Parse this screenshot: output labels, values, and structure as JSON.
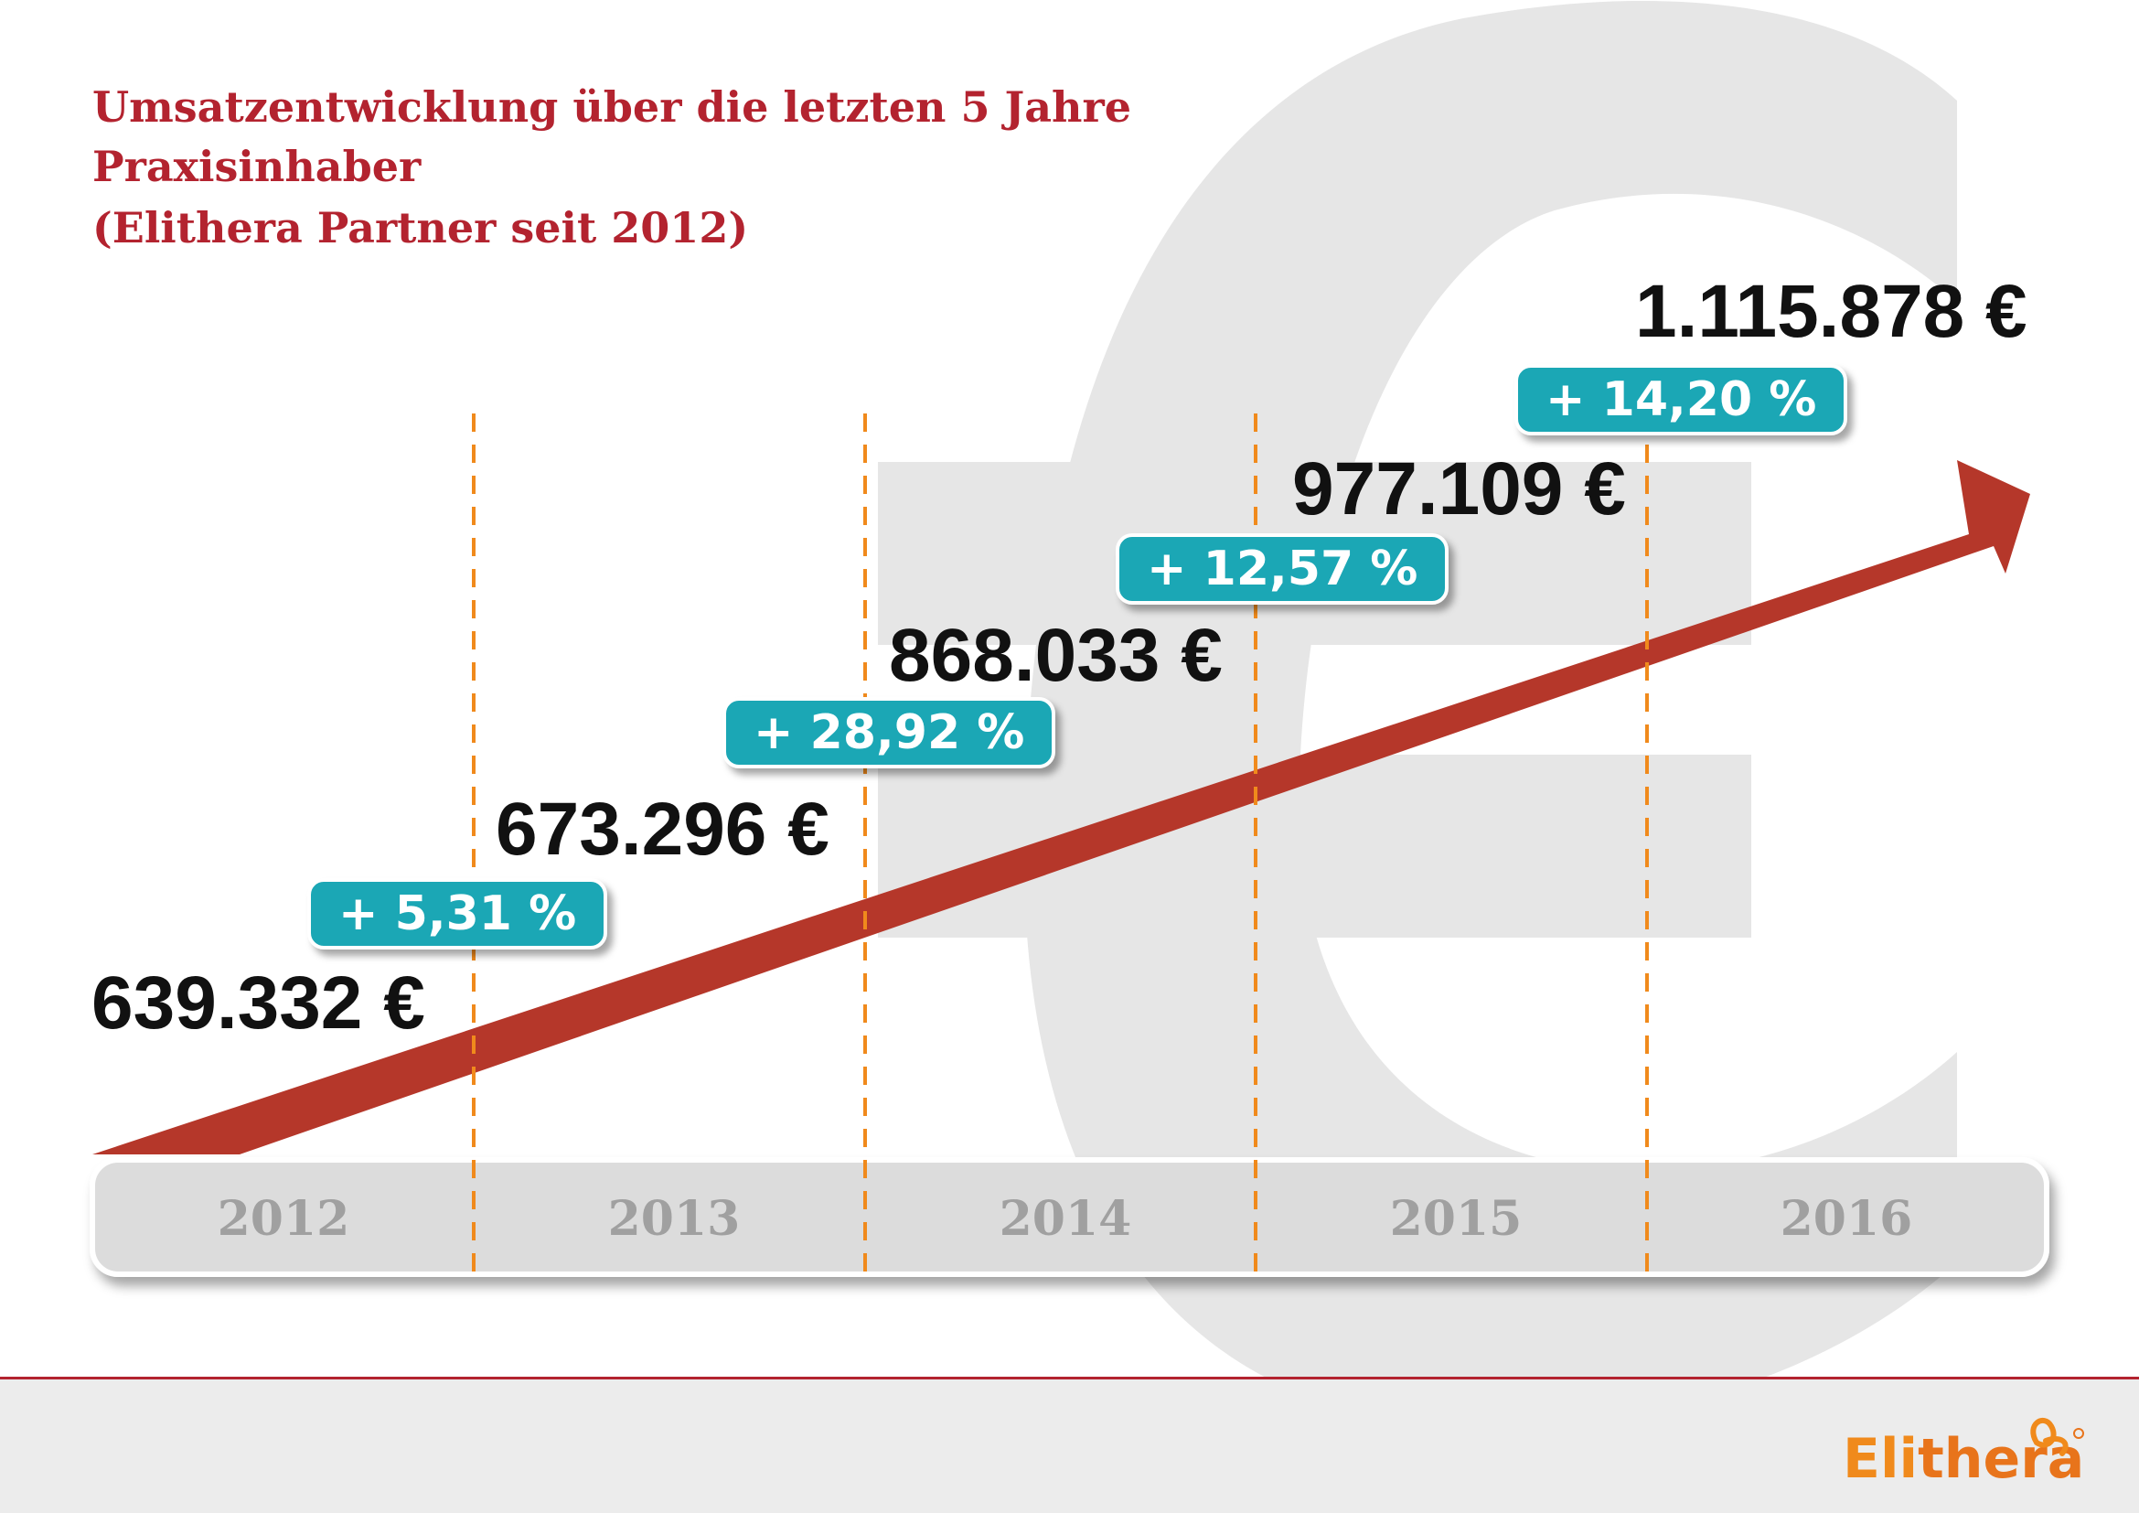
{
  "title_lines": [
    "Umsatzentwicklung über die letzten 5 Jahre",
    "Praxisinhaber",
    "(Elithera Partner seit 2012)"
  ],
  "chart_data": {
    "type": "bar",
    "categories": [
      "2012",
      "2013",
      "2014",
      "2015",
      "2016"
    ],
    "values": [
      639332,
      673296,
      868033,
      977109,
      1115878
    ],
    "value_labels": [
      "639.332 €",
      "673.296 €",
      "868.033 €",
      "977.109 €",
      "1.115.878 €"
    ],
    "growth_labels": [
      "+ 5,31 %",
      "+ 28,92 %",
      "+ 12,57 %",
      "+ 14,20 %"
    ],
    "title": "Umsatzentwicklung über die letzten 5 Jahre",
    "xlabel": "",
    "ylabel": "",
    "grid": false,
    "legend": "none"
  },
  "colors": {
    "title": "#b3232f",
    "arrow": "#b5372a",
    "badge": "#1ba7b5",
    "divider": "#f08a1c",
    "axis_bar": "#dcdcdc",
    "year_text": "#a0a0a0",
    "background_symbol": "#e6e6e6"
  },
  "background_symbol": "euro-sign",
  "logo": {
    "text_part1": "Eli",
    "text_part2": "thera",
    "mark": "registered",
    "icon": "bow-ribbon-icon"
  }
}
